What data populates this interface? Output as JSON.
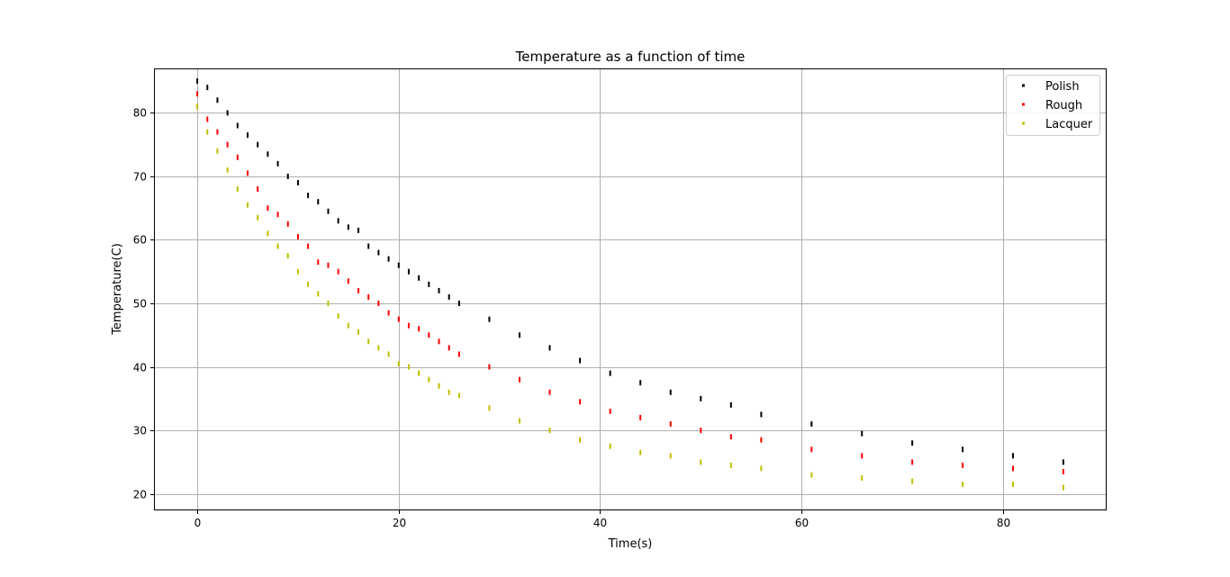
{
  "chart_data": {
    "type": "scatter",
    "title": "Temperature as a function of time",
    "xlabel": "Time(s)",
    "ylabel": "Temperature(C)",
    "xlim": [
      -4.3,
      90.3
    ],
    "ylim": [
      17.4,
      87.0
    ],
    "xticks": [
      0,
      20,
      40,
      60,
      80
    ],
    "yticks": [
      20,
      30,
      40,
      50,
      60,
      70,
      80
    ],
    "grid": true,
    "legend_position": "top-right",
    "series": [
      {
        "name": "Polish",
        "color": "#000000",
        "x": [
          0,
          1,
          2,
          3,
          4,
          5,
          6,
          7,
          8,
          9,
          10,
          11,
          12,
          13,
          14,
          15,
          16,
          17,
          18,
          19,
          20,
          21,
          22,
          23,
          24,
          25,
          26,
          29,
          32,
          35,
          38,
          41,
          44,
          47,
          50,
          53,
          56,
          61,
          66,
          71,
          76,
          81,
          86
        ],
        "y": [
          85,
          84,
          82,
          80,
          78,
          76.5,
          75,
          73.5,
          72,
          70,
          69,
          67,
          66,
          64.5,
          63,
          62,
          61.5,
          59,
          58,
          57,
          56,
          55,
          54,
          53,
          52,
          51,
          50,
          47.5,
          45,
          43,
          41,
          39,
          37.5,
          36,
          35,
          34,
          32.5,
          31,
          29.5,
          28,
          27,
          26,
          25
        ]
      },
      {
        "name": "Rough",
        "color": "#ff0000",
        "x": [
          0,
          1,
          2,
          3,
          4,
          5,
          6,
          7,
          8,
          9,
          10,
          11,
          12,
          13,
          14,
          15,
          16,
          17,
          18,
          19,
          20,
          21,
          22,
          23,
          24,
          25,
          26,
          29,
          32,
          35,
          38,
          41,
          44,
          47,
          50,
          53,
          56,
          61,
          66,
          71,
          76,
          81,
          86
        ],
        "y": [
          83,
          79,
          77,
          75,
          73,
          70.5,
          68,
          65,
          64,
          62.5,
          60.5,
          59,
          56.5,
          56,
          55,
          53.5,
          52,
          51,
          50,
          48.5,
          47.5,
          46.5,
          46,
          45,
          44,
          43,
          42,
          40,
          38,
          36,
          34.5,
          33,
          32,
          31,
          30,
          29,
          28.5,
          27,
          26,
          25,
          24.5,
          24,
          23.5
        ]
      },
      {
        "name": "Lacquer",
        "color": "#bfbf00",
        "x": [
          0,
          1,
          2,
          3,
          4,
          5,
          6,
          7,
          8,
          9,
          10,
          11,
          12,
          13,
          14,
          15,
          16,
          17,
          18,
          19,
          20,
          21,
          22,
          23,
          24,
          25,
          26,
          29,
          32,
          35,
          38,
          41,
          44,
          47,
          50,
          53,
          56,
          61,
          66,
          71,
          76,
          81,
          86
        ],
        "y": [
          81,
          77,
          74,
          71,
          68,
          65.5,
          63.5,
          61,
          59,
          57.5,
          55,
          53,
          51.5,
          50,
          48,
          46.5,
          45.5,
          44,
          43,
          42,
          40.5,
          40,
          39,
          38,
          37,
          36,
          35.5,
          33.5,
          31.5,
          30,
          28.5,
          27.5,
          26.5,
          26,
          25,
          24.5,
          24,
          23,
          22.5,
          22,
          21.5,
          21.5,
          21
        ]
      }
    ]
  }
}
